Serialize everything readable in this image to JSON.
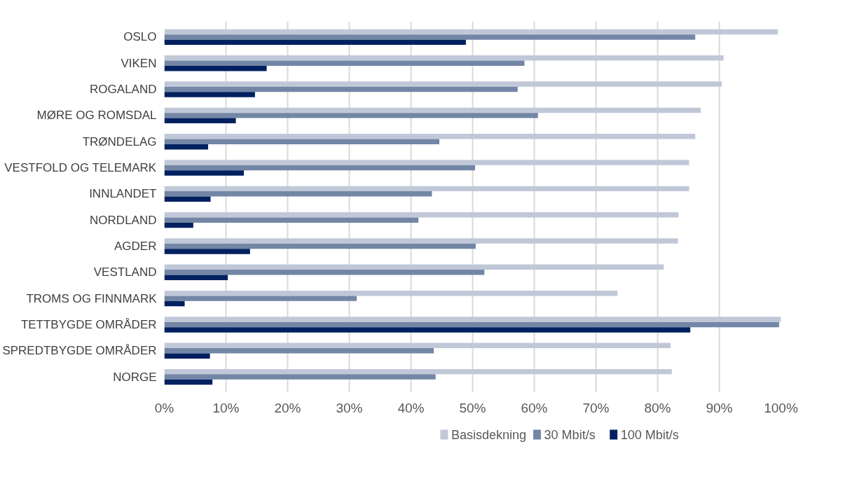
{
  "chart_data": {
    "type": "bar",
    "orientation": "horizontal",
    "categories": [
      "OSLO",
      "VIKEN",
      "ROGALAND",
      "MØRE OG ROMSDAL",
      "TRØNDELAG",
      "VESTFOLD OG TELEMARK",
      "INNLANDET",
      "NORDLAND",
      "AGDER",
      "VESTLAND",
      "TROMS OG FINNMARK",
      "TETTBYGDE OMRÅDER",
      "SPREDTBYGDE OMRÅDER",
      "NORGE"
    ],
    "series": [
      {
        "name": "Basisdekning",
        "color": "#c0c8d8",
        "values": [
          99.5,
          90.7,
          90.4,
          87.0,
          86.1,
          85.1,
          85.1,
          83.4,
          83.3,
          81.0,
          73.5,
          100,
          82.1,
          82.3
        ]
      },
      {
        "name": "30 Mbit/s",
        "color": "#7386a6",
        "values": [
          86.1,
          58.4,
          57.3,
          60.6,
          44.6,
          50.4,
          43.4,
          41.2,
          50.5,
          51.9,
          31.2,
          99.7,
          43.7,
          44.0
        ]
      },
      {
        "name": "100 Mbit/s",
        "color": "#002060",
        "values": [
          48.9,
          16.6,
          14.7,
          11.6,
          7.1,
          12.9,
          7.5,
          4.7,
          13.9,
          10.3,
          3.3,
          85.3,
          7.4,
          7.8
        ]
      }
    ],
    "xlim": [
      0,
      100
    ],
    "xticks": [
      {
        "value": 0,
        "label": "0%"
      },
      {
        "value": 10,
        "label": "10%"
      },
      {
        "value": 20,
        "label": "20%"
      },
      {
        "value": 30,
        "label": "30%"
      },
      {
        "value": 40,
        "label": "40%"
      },
      {
        "value": 50,
        "label": "50%"
      },
      {
        "value": 60,
        "label": "60%"
      },
      {
        "value": 70,
        "label": "70%"
      },
      {
        "value": 80,
        "label": "80%"
      },
      {
        "value": 90,
        "label": "90%"
      },
      {
        "value": 100,
        "label": "100%"
      }
    ],
    "grid": "x",
    "legend": "bottom"
  }
}
